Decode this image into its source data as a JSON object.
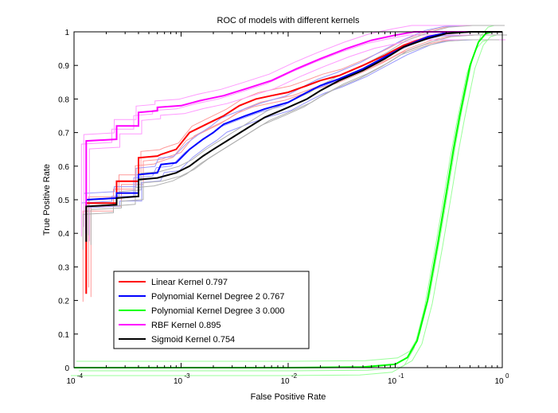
{
  "chart_data": {
    "type": "line",
    "title": "ROC of models with different kernels",
    "xlabel": "False Positive Rate",
    "ylabel": "True Positive Rate",
    "xscale": "log",
    "xlim": [
      0.0001,
      1
    ],
    "ylim": [
      0,
      1
    ],
    "x_ticks": [
      {
        "base": "10",
        "exp": "-4"
      },
      {
        "base": "10",
        "exp": "-3"
      },
      {
        "base": "10",
        "exp": "-2"
      },
      {
        "base": "10",
        "exp": "-1"
      },
      {
        "base": "10",
        "exp": "0"
      }
    ],
    "y_ticks": [
      "0",
      "0.1",
      "0.2",
      "0.3",
      "0.4",
      "0.5",
      "0.6",
      "0.7",
      "0.8",
      "0.9",
      "1"
    ],
    "grid": false,
    "legend_position": "bottom-left",
    "series": [
      {
        "name": "Linear Kernel  0.797",
        "color": "#ff0000",
        "points": [
          [
            0.00013,
            0.22
          ],
          [
            0.00013,
            0.49
          ],
          [
            0.00025,
            0.49
          ],
          [
            0.00025,
            0.555
          ],
          [
            0.0004,
            0.555
          ],
          [
            0.0004,
            0.625
          ],
          [
            0.0006,
            0.63
          ],
          [
            0.00065,
            0.635
          ],
          [
            0.0009,
            0.65
          ],
          [
            0.0012,
            0.7
          ],
          [
            0.0016,
            0.72
          ],
          [
            0.002,
            0.735
          ],
          [
            0.0025,
            0.75
          ],
          [
            0.0035,
            0.78
          ],
          [
            0.005,
            0.8
          ],
          [
            0.007,
            0.81
          ],
          [
            0.01,
            0.82
          ],
          [
            0.015,
            0.84
          ],
          [
            0.02,
            0.855
          ],
          [
            0.03,
            0.87
          ],
          [
            0.05,
            0.9
          ],
          [
            0.08,
            0.93
          ],
          [
            0.12,
            0.96
          ],
          [
            0.2,
            0.985
          ],
          [
            0.3,
            0.997
          ],
          [
            0.5,
            1.0
          ],
          [
            1,
            1.0
          ]
        ]
      },
      {
        "name": "Polynomial Kernel Degree 2  0.767",
        "color": "#0000ff",
        "points": [
          [
            0.00013,
            0.5
          ],
          [
            0.00025,
            0.505
          ],
          [
            0.00025,
            0.52
          ],
          [
            0.0004,
            0.52
          ],
          [
            0.0004,
            0.575
          ],
          [
            0.0006,
            0.58
          ],
          [
            0.00065,
            0.605
          ],
          [
            0.0009,
            0.61
          ],
          [
            0.0012,
            0.65
          ],
          [
            0.0016,
            0.68
          ],
          [
            0.002,
            0.7
          ],
          [
            0.0025,
            0.725
          ],
          [
            0.004,
            0.75
          ],
          [
            0.006,
            0.77
          ],
          [
            0.01,
            0.79
          ],
          [
            0.015,
            0.82
          ],
          [
            0.02,
            0.84
          ],
          [
            0.03,
            0.86
          ],
          [
            0.05,
            0.89
          ],
          [
            0.08,
            0.925
          ],
          [
            0.12,
            0.955
          ],
          [
            0.2,
            0.985
          ],
          [
            0.3,
            0.997
          ],
          [
            0.5,
            1.0
          ],
          [
            1,
            1.0
          ]
        ]
      },
      {
        "name": "Polynomial Kernel Degree 3  0.000",
        "color": "#00ff00",
        "points": [
          [
            0.0001,
            0.0
          ],
          [
            0.001,
            0.0
          ],
          [
            0.01,
            0.0
          ],
          [
            0.05,
            0.002
          ],
          [
            0.1,
            0.01
          ],
          [
            0.13,
            0.03
          ],
          [
            0.16,
            0.08
          ],
          [
            0.2,
            0.2
          ],
          [
            0.25,
            0.37
          ],
          [
            0.3,
            0.52
          ],
          [
            0.35,
            0.65
          ],
          [
            0.4,
            0.75
          ],
          [
            0.5,
            0.9
          ],
          [
            0.6,
            0.97
          ],
          [
            0.7,
            0.995
          ],
          [
            0.8,
            1.0
          ],
          [
            1,
            1.0
          ]
        ]
      },
      {
        "name": "RBF Kernel  0.895",
        "color": "#ff00ff",
        "points": [
          [
            0.00013,
            0.4
          ],
          [
            0.00013,
            0.675
          ],
          [
            0.00025,
            0.68
          ],
          [
            0.00025,
            0.72
          ],
          [
            0.0004,
            0.72
          ],
          [
            0.0004,
            0.76
          ],
          [
            0.0006,
            0.765
          ],
          [
            0.0006,
            0.775
          ],
          [
            0.001,
            0.78
          ],
          [
            0.0015,
            0.795
          ],
          [
            0.0025,
            0.81
          ],
          [
            0.004,
            0.83
          ],
          [
            0.007,
            0.855
          ],
          [
            0.012,
            0.89
          ],
          [
            0.02,
            0.92
          ],
          [
            0.035,
            0.95
          ],
          [
            0.06,
            0.975
          ],
          [
            0.1,
            0.99
          ],
          [
            0.15,
            1.0
          ],
          [
            1,
            1.0
          ]
        ]
      },
      {
        "name": "Sigmoid Kernel  0.754",
        "color": "#000000",
        "points": [
          [
            0.00013,
            0.375
          ],
          [
            0.00013,
            0.48
          ],
          [
            0.00025,
            0.485
          ],
          [
            0.00025,
            0.505
          ],
          [
            0.0004,
            0.51
          ],
          [
            0.0004,
            0.56
          ],
          [
            0.0006,
            0.565
          ],
          [
            0.0009,
            0.58
          ],
          [
            0.0012,
            0.6
          ],
          [
            0.0016,
            0.63
          ],
          [
            0.002,
            0.65
          ],
          [
            0.003,
            0.685
          ],
          [
            0.004,
            0.71
          ],
          [
            0.006,
            0.745
          ],
          [
            0.01,
            0.775
          ],
          [
            0.015,
            0.8
          ],
          [
            0.02,
            0.825
          ],
          [
            0.03,
            0.855
          ],
          [
            0.05,
            0.885
          ],
          [
            0.08,
            0.92
          ],
          [
            0.12,
            0.955
          ],
          [
            0.2,
            0.98
          ],
          [
            0.3,
            0.995
          ],
          [
            0.5,
            1.0
          ],
          [
            1,
            1.0
          ]
        ]
      }
    ]
  }
}
